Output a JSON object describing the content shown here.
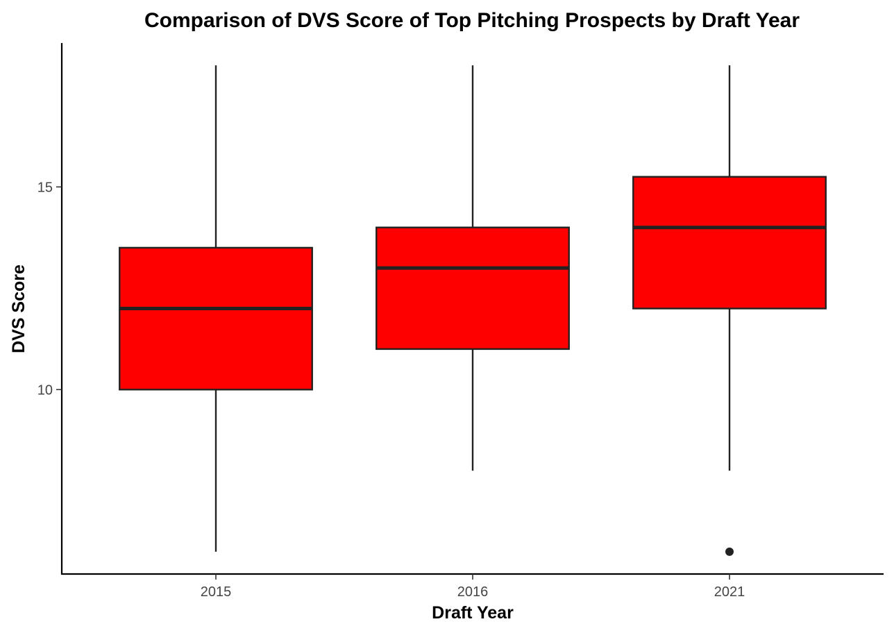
{
  "chart_data": {
    "type": "boxplot",
    "title": "Comparison of DVS Score of Top Pitching Prospects by Draft Year",
    "xlabel": "Draft Year",
    "ylabel": "DVS Score",
    "categories": [
      "2015",
      "2016",
      "2021"
    ],
    "boxes": [
      {
        "category": "2015",
        "whisker_low": 6,
        "q1": 10,
        "median": 12,
        "q3": 13.5,
        "whisker_high": 18,
        "outliers": []
      },
      {
        "category": "2016",
        "whisker_low": 8,
        "q1": 11,
        "median": 13,
        "q3": 14,
        "whisker_high": 18,
        "outliers": []
      },
      {
        "category": "2021",
        "whisker_low": 8,
        "q1": 12,
        "median": 14,
        "q3": 15.25,
        "whisker_high": 18,
        "outliers": [
          6
        ]
      }
    ],
    "y_ticks": [
      10,
      15
    ],
    "ylim": [
      5.45,
      18.55
    ],
    "box_fill": "#ff0000",
    "grid": false,
    "legend": "none"
  }
}
